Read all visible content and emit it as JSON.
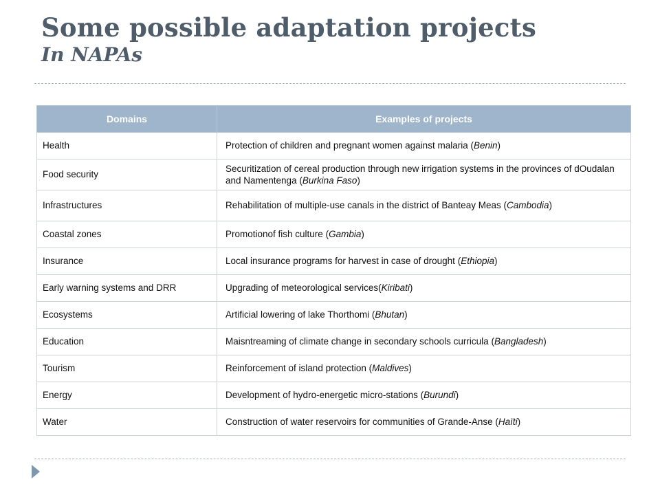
{
  "slide": {
    "title_line1": "Some possible adaptation projects",
    "title_line2": "In NAPAs"
  },
  "table": {
    "headers": [
      "Domains",
      "Examples of projects"
    ],
    "rows": [
      {
        "domain": "Health",
        "example": "Protection of children and pregnant women against malaria",
        "country": "Benin"
      },
      {
        "domain": "Food security",
        "example": "Securitization of cereal production through new irrigation systems in the provinces of dOudalan and Namentenga",
        "country": "Burkina Faso"
      },
      {
        "domain": "Infrastructures",
        "example": "Rehabilitation of multiple-use canals in the district of Banteay Meas",
        "country": "Cambodia"
      },
      {
        "domain": "Coastal zones",
        "example": "Promotionof fish culture",
        "country": "Gambia"
      },
      {
        "domain": "Insurance",
        "example": "Local insurance programs for harvest in case of drought",
        "country": "Ethiopia"
      },
      {
        "domain": "Early warning systems and DRR",
        "example": "Upgrading of meteorological services",
        "country": "Kiribati"
      },
      {
        "domain": "Ecosystems",
        "example": "Artificial lowering of lake Thorthomi",
        "country": "Bhutan"
      },
      {
        "domain": "Education",
        "example": "Maisntreaming of climate change in secondary schools curricula",
        "country": "Bangladesh"
      },
      {
        "domain": "Tourism",
        "example": "Reinforcement of island protection",
        "country": "Maldives"
      },
      {
        "domain": "Energy",
        "example": "Development of hydro-energetic micro-stations",
        "country": "Burundi"
      },
      {
        "domain": "Water",
        "example": "Construction of water reservoirs for communities of Grande-Anse",
        "country": "Haïti"
      }
    ]
  },
  "icons": {
    "bullet": "triangle-bullet-icon"
  },
  "colors": {
    "title": "#4f5d6b",
    "header_bg": "#9fb5cb",
    "header_text": "#ffffff",
    "divider": "#9fb3c3",
    "bullet": "#7f97ad"
  }
}
